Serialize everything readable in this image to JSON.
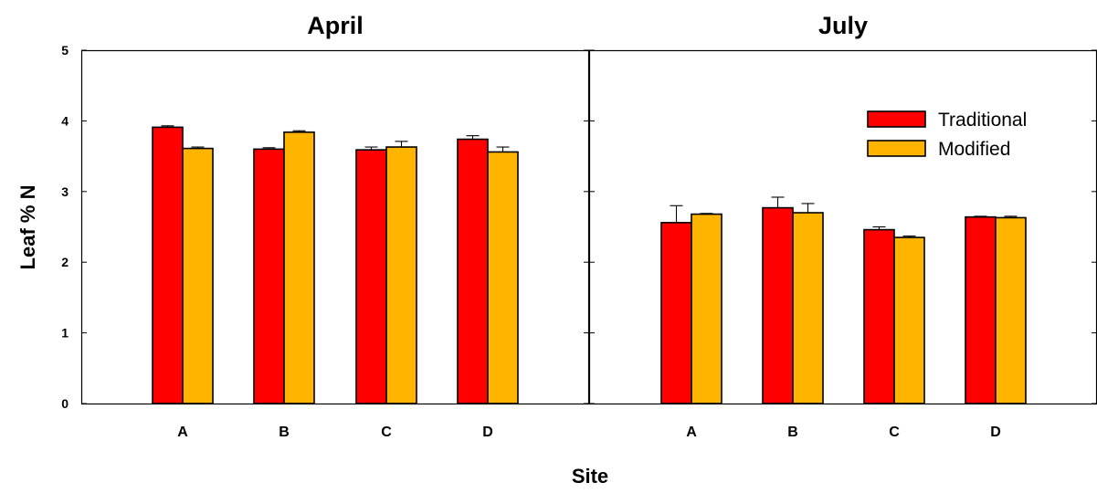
{
  "chart_data": {
    "type": "bar",
    "ylabel": "Leaf % N",
    "xlabel": "Site",
    "ylim": [
      0,
      5
    ],
    "yticks": [
      "0",
      "1",
      "2",
      "3",
      "4",
      "5"
    ],
    "categories": [
      "A",
      "B",
      "C",
      "D"
    ],
    "legend_position": "top-right",
    "colors": {
      "Traditional": "#ff0000",
      "Modified": "#ffb400"
    },
    "panels": [
      {
        "title": "April",
        "series": [
          {
            "name": "Traditional",
            "values": [
              3.91,
              3.6,
              3.59,
              3.74
            ],
            "errors": [
              0.02,
              0.02,
              0.04,
              0.05
            ]
          },
          {
            "name": "Modified",
            "values": [
              3.61,
              3.84,
              3.63,
              3.56
            ],
            "errors": [
              0.02,
              0.02,
              0.08,
              0.07
            ]
          }
        ]
      },
      {
        "title": "July",
        "series": [
          {
            "name": "Traditional",
            "values": [
              2.56,
              2.77,
              2.46,
              2.64
            ],
            "errors": [
              0.24,
              0.15,
              0.04,
              0.01
            ]
          },
          {
            "name": "Modified",
            "values": [
              2.68,
              2.7,
              2.35,
              2.63
            ],
            "errors": [
              0.01,
              0.13,
              0.02,
              0.02
            ]
          }
        ]
      }
    ]
  }
}
